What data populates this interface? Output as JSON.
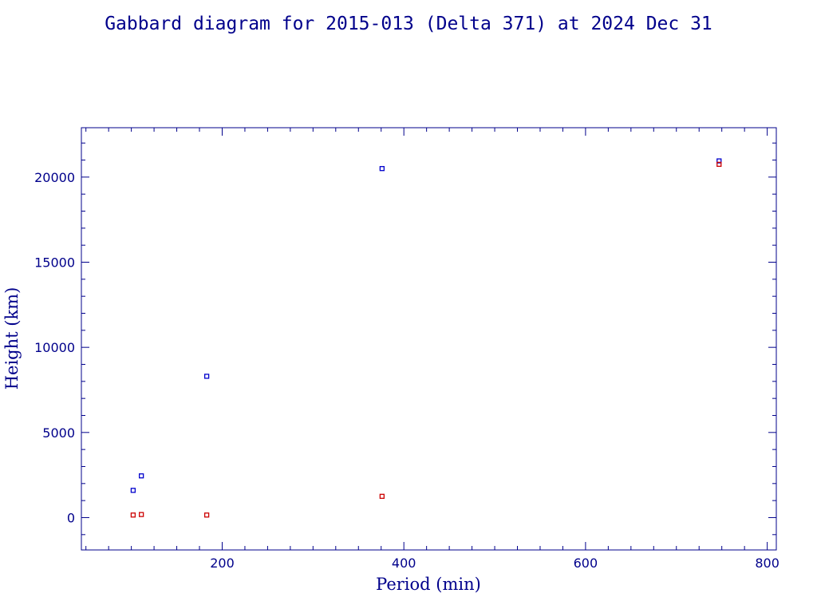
{
  "chart_data": {
    "type": "scatter",
    "title": "Gabbard diagram for 2015-013 (Delta 371) at 2024 Dec 31",
    "xlabel": "Period (min)",
    "ylabel": "Height (km)",
    "xlim": [
      45,
      810
    ],
    "ylim": [
      -1900,
      22900
    ],
    "xticks": [
      200,
      400,
      600,
      800
    ],
    "yticks": [
      0,
      5000,
      10000,
      15000,
      20000
    ],
    "xtick_labels": [
      "200",
      "400",
      "600",
      "800"
    ],
    "ytick_labels": [
      "0",
      "5000",
      "10000",
      "15000",
      "20000"
    ],
    "grid": false,
    "series": [
      {
        "color": "#0000cc",
        "points": [
          {
            "x": 102,
            "y": 1600
          },
          {
            "x": 111,
            "y": 2450
          },
          {
            "x": 183,
            "y": 8300
          },
          {
            "x": 376,
            "y": 20500
          },
          {
            "x": 747,
            "y": 20950
          }
        ]
      },
      {
        "color": "#cc0000",
        "points": [
          {
            "x": 102,
            "y": 150
          },
          {
            "x": 111,
            "y": 180
          },
          {
            "x": 183,
            "y": 150
          },
          {
            "x": 376,
            "y": 1250
          },
          {
            "x": 747,
            "y": 20750
          }
        ]
      }
    ],
    "axis_color": "#00008b"
  }
}
